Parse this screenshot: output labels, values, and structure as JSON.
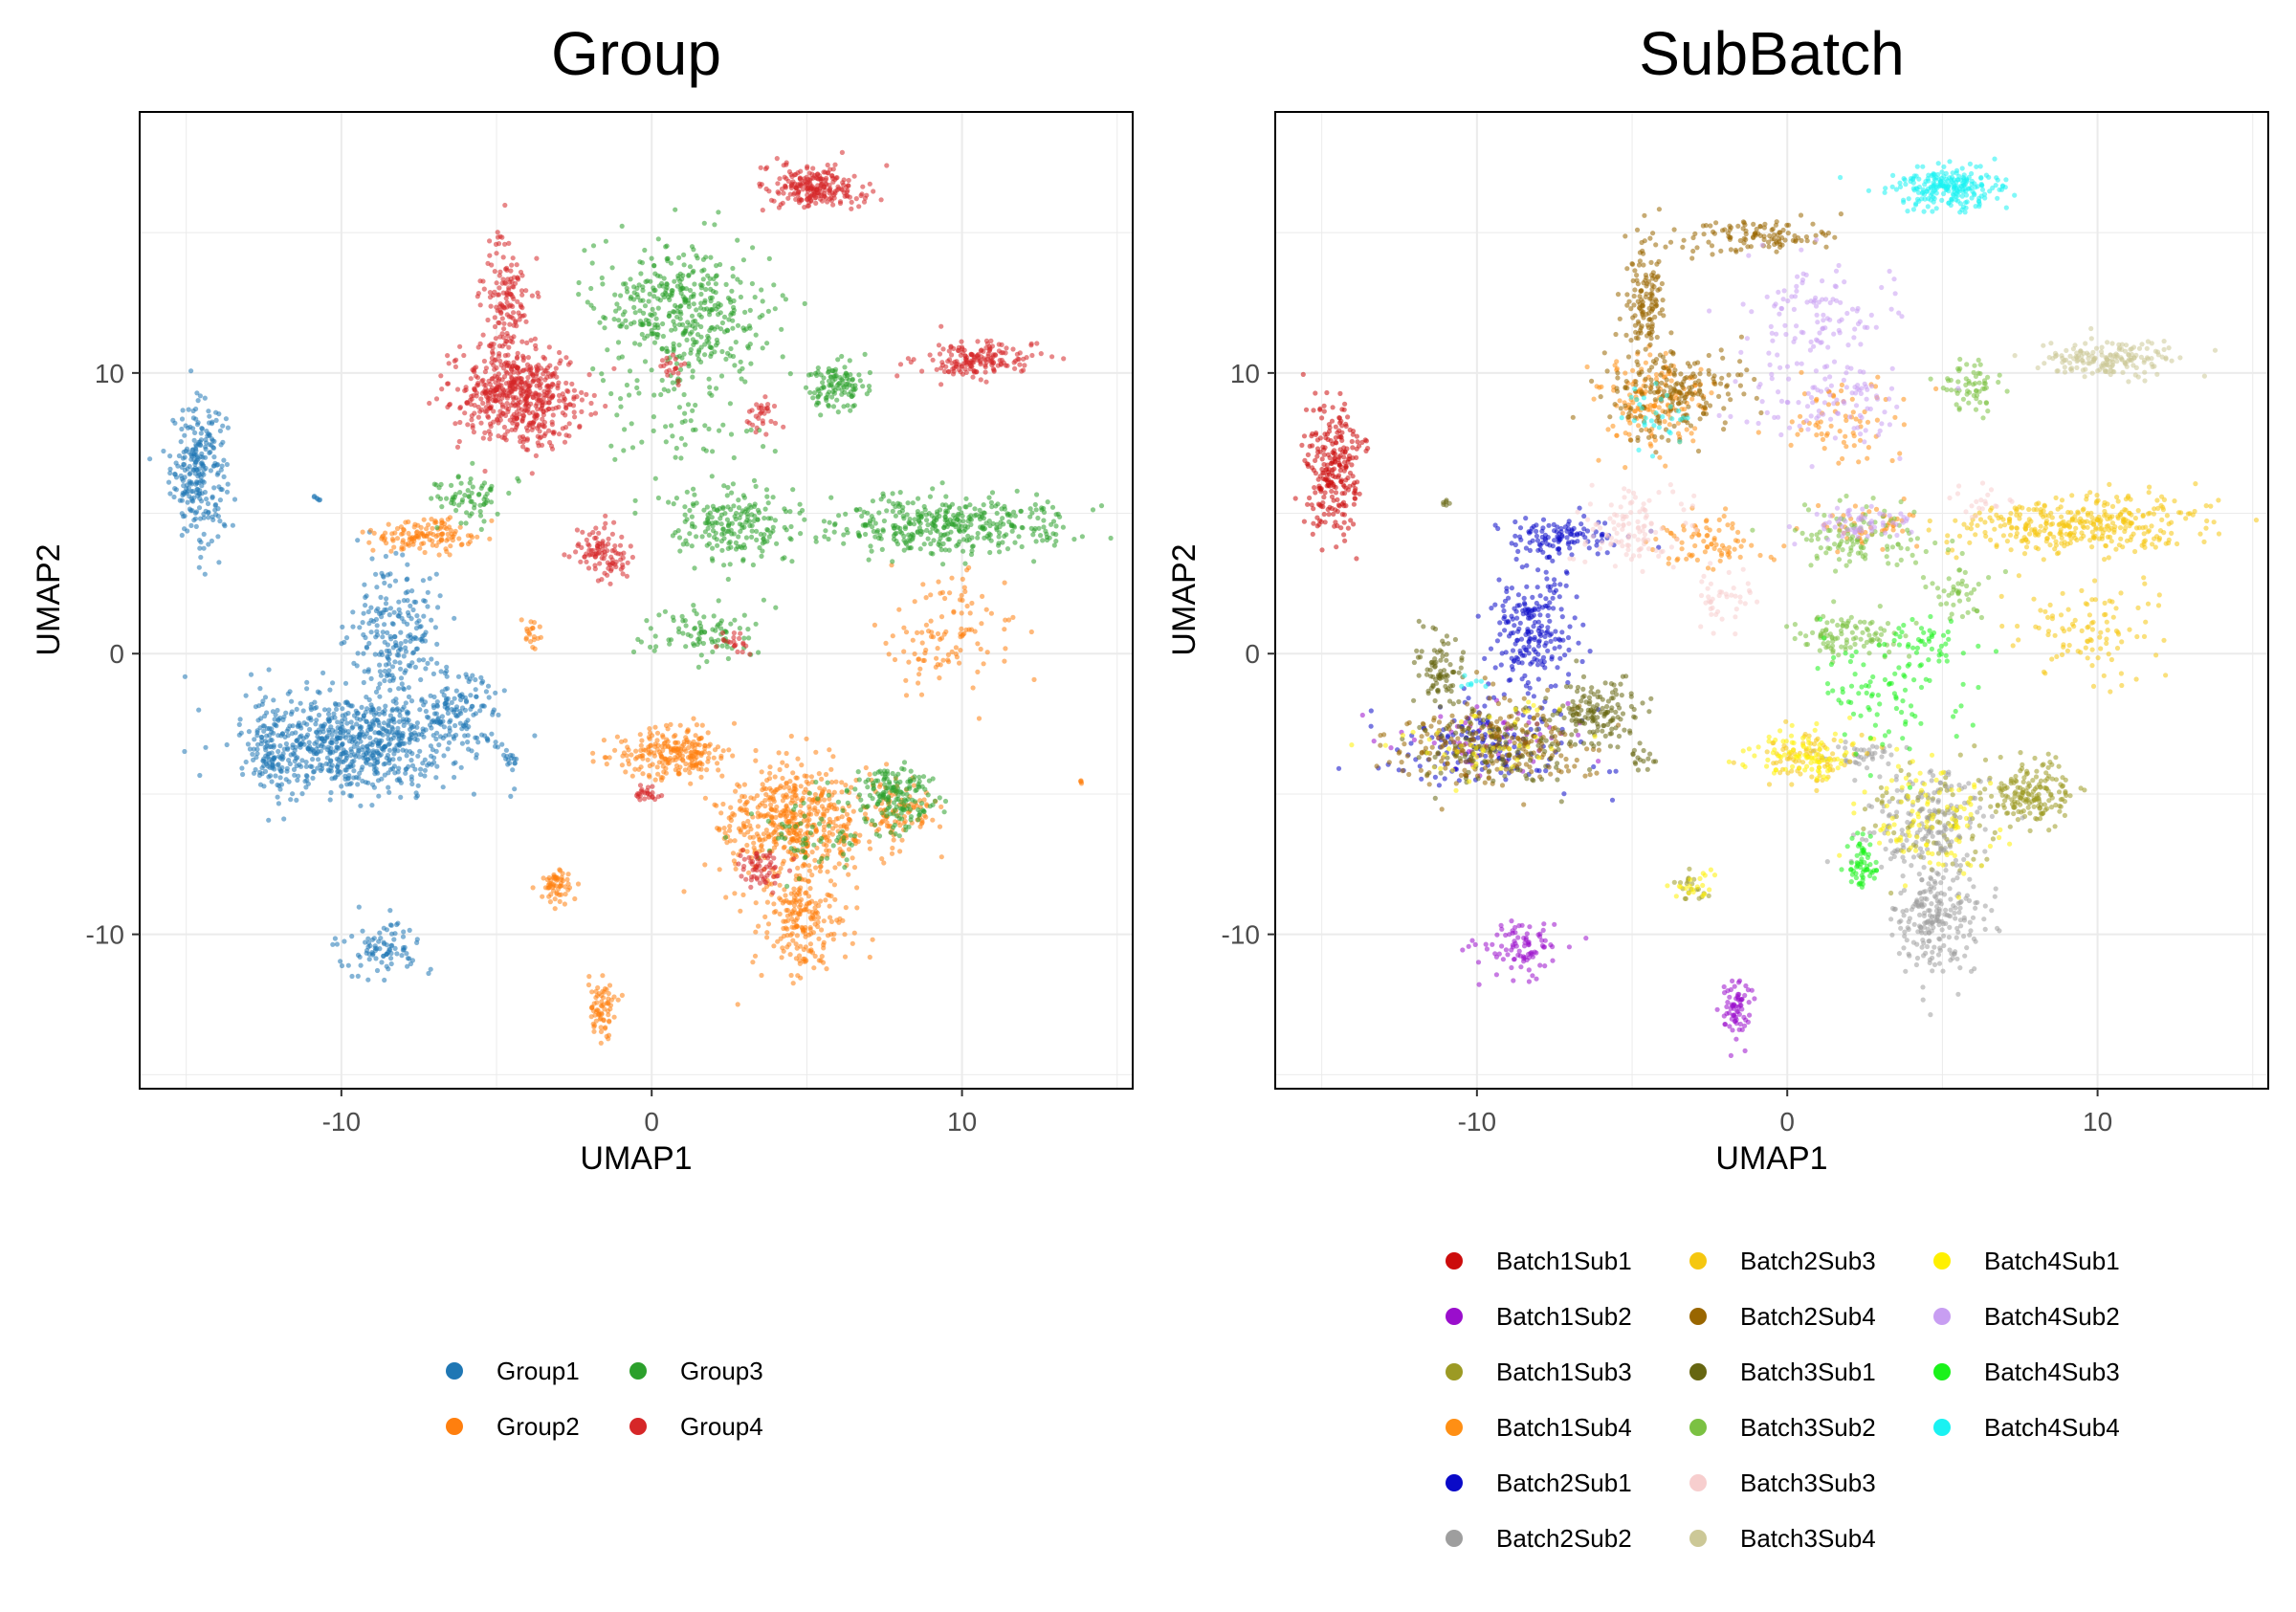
{
  "chart_data": [
    {
      "type": "scatter",
      "title": "Group",
      "xlabel": "UMAP1",
      "ylabel": "UMAP2",
      "xlim": [
        -16.5,
        15.5
      ],
      "ylim": [
        -15.5,
        19.3
      ],
      "xticks": [
        -10,
        0,
        10
      ],
      "yticks": [
        -10,
        0,
        10
      ],
      "xtick_labels": [
        "-10",
        "0",
        "10"
      ],
      "ytick_labels": [
        "-10",
        "0",
        "10"
      ],
      "grid": true,
      "legend_position": "bottom",
      "series": [
        {
          "name": "Group1",
          "color": "#1F77B4",
          "clusters": [
            {
              "cx": -14.6,
              "cy": 6.5,
              "sx": 0.6,
              "sy": 1.6,
              "n": 260
            },
            {
              "cx": -9.6,
              "cy": -3.2,
              "sx": 2.3,
              "sy": 1.2,
              "n": 700
            },
            {
              "cx": -8.2,
              "cy": 0.8,
              "sx": 1.0,
              "sy": 1.8,
              "n": 220
            },
            {
              "cx": -6.2,
              "cy": -2.1,
              "sx": 0.9,
              "sy": 0.8,
              "n": 120
            },
            {
              "cx": -8.7,
              "cy": -10.5,
              "sx": 0.9,
              "sy": 0.6,
              "n": 90
            },
            {
              "cx": -12.2,
              "cy": -3.5,
              "sx": 0.5,
              "sy": 1.0,
              "n": 80
            },
            {
              "cx": -4.6,
              "cy": -3.8,
              "sx": 0.2,
              "sy": 0.2,
              "n": 15
            },
            {
              "cx": -10.8,
              "cy": 5.5,
              "sx": 0.1,
              "sy": 0.1,
              "n": 6
            }
          ]
        },
        {
          "name": "Group2",
          "color": "#FF7F0E",
          "clusters": [
            {
              "cx": 4.6,
              "cy": -6.0,
              "sx": 1.6,
              "sy": 1.4,
              "n": 520
            },
            {
              "cx": 4.9,
              "cy": -9.5,
              "sx": 0.9,
              "sy": 1.3,
              "n": 200
            },
            {
              "cx": 0.7,
              "cy": -3.6,
              "sx": 1.3,
              "sy": 0.6,
              "n": 230
            },
            {
              "cx": -7.4,
              "cy": 4.2,
              "sx": 1.2,
              "sy": 0.4,
              "n": 130
            },
            {
              "cx": -3.1,
              "cy": -8.3,
              "sx": 0.4,
              "sy": 0.4,
              "n": 60
            },
            {
              "cx": -1.6,
              "cy": -12.7,
              "sx": 0.3,
              "sy": 0.8,
              "n": 70
            },
            {
              "cx": 9.6,
              "cy": 0.8,
              "sx": 1.4,
              "sy": 1.2,
              "n": 110
            },
            {
              "cx": 7.9,
              "cy": -5.6,
              "sx": 0.8,
              "sy": 0.7,
              "n": 90
            },
            {
              "cx": -3.9,
              "cy": 0.8,
              "sx": 0.3,
              "sy": 0.3,
              "n": 20
            },
            {
              "cx": 13.8,
              "cy": -4.6,
              "sx": 0.1,
              "sy": 0.1,
              "n": 4
            }
          ]
        },
        {
          "name": "Group3",
          "color": "#2CA02C",
          "clusters": [
            {
              "cx": 1.0,
              "cy": 12.2,
              "sx": 1.9,
              "sy": 1.6,
              "n": 420
            },
            {
              "cx": 6.0,
              "cy": 9.5,
              "sx": 0.6,
              "sy": 0.6,
              "n": 110
            },
            {
              "cx": 9.5,
              "cy": 4.6,
              "sx": 2.6,
              "sy": 0.7,
              "n": 380
            },
            {
              "cx": 2.5,
              "cy": 4.6,
              "sx": 1.4,
              "sy": 0.8,
              "n": 200
            },
            {
              "cx": 7.8,
              "cy": -5.0,
              "sx": 0.9,
              "sy": 0.8,
              "n": 170
            },
            {
              "cx": -5.8,
              "cy": 5.5,
              "sx": 0.8,
              "sy": 0.6,
              "n": 70
            },
            {
              "cx": 1.8,
              "cy": 0.7,
              "sx": 1.2,
              "sy": 0.6,
              "n": 90
            },
            {
              "cx": 5.0,
              "cy": -6.5,
              "sx": 1.2,
              "sy": 1.0,
              "n": 60
            },
            {
              "cx": 0.8,
              "cy": 8.2,
              "sx": 1.8,
              "sy": 1.2,
              "n": 60
            }
          ]
        },
        {
          "name": "Group4",
          "color": "#D62728",
          "clusters": [
            {
              "cx": 5.2,
              "cy": 16.6,
              "sx": 1.1,
              "sy": 0.5,
              "n": 230
            },
            {
              "cx": 10.4,
              "cy": 10.5,
              "sx": 1.3,
              "sy": 0.4,
              "n": 170
            },
            {
              "cx": -4.4,
              "cy": 9.2,
              "sx": 1.3,
              "sy": 1.1,
              "n": 560
            },
            {
              "cx": -4.6,
              "cy": 12.6,
              "sx": 0.5,
              "sy": 1.4,
              "n": 140
            },
            {
              "cx": -1.6,
              "cy": 3.6,
              "sx": 0.6,
              "sy": 0.6,
              "n": 100
            },
            {
              "cx": 3.5,
              "cy": -7.7,
              "sx": 0.5,
              "sy": 0.5,
              "n": 60
            },
            {
              "cx": 3.5,
              "cy": 8.5,
              "sx": 0.4,
              "sy": 0.4,
              "n": 30
            },
            {
              "cx": -0.2,
              "cy": -5.0,
              "sx": 0.3,
              "sy": 0.2,
              "n": 25
            },
            {
              "cx": 0.6,
              "cy": 10.2,
              "sx": 0.3,
              "sy": 0.3,
              "n": 20
            },
            {
              "cx": 2.7,
              "cy": 0.4,
              "sx": 0.4,
              "sy": 0.3,
              "n": 20
            }
          ]
        }
      ]
    },
    {
      "type": "scatter",
      "title": "SubBatch",
      "xlabel": "UMAP1",
      "ylabel": "UMAP2",
      "xlim": [
        -16.5,
        15.5
      ],
      "ylim": [
        -15.5,
        19.3
      ],
      "xticks": [
        -10,
        0,
        10
      ],
      "yticks": [
        -10,
        0,
        10
      ],
      "xtick_labels": [
        "-10",
        "0",
        "10"
      ],
      "ytick_labels": [
        "-10",
        "0",
        "10"
      ],
      "grid": true,
      "legend_position": "bottom",
      "series": [
        {
          "name": "Batch1Sub1",
          "color": "#CC0C0C",
          "clusters": [
            {
              "cx": -14.6,
              "cy": 6.5,
              "sx": 0.6,
              "sy": 1.6,
              "n": 250
            }
          ]
        },
        {
          "name": "Batch1Sub2",
          "color": "#9A0ECC",
          "clusters": [
            {
              "cx": -8.7,
              "cy": -10.5,
              "sx": 0.9,
              "sy": 0.6,
              "n": 90
            },
            {
              "cx": -1.6,
              "cy": -12.7,
              "sx": 0.3,
              "sy": 0.8,
              "n": 70
            },
            {
              "cx": -9.6,
              "cy": -3.2,
              "sx": 2.0,
              "sy": 1.0,
              "n": 60
            }
          ]
        },
        {
          "name": "Batch1Sub3",
          "color": "#9C9A24",
          "clusters": [
            {
              "cx": 7.8,
              "cy": -5.0,
              "sx": 0.9,
              "sy": 0.8,
              "n": 170
            },
            {
              "cx": 4.6,
              "cy": -6.0,
              "sx": 1.5,
              "sy": 1.3,
              "n": 80
            },
            {
              "cx": -3.1,
              "cy": -8.3,
              "sx": 0.4,
              "sy": 0.4,
              "n": 20
            }
          ]
        },
        {
          "name": "Batch1Sub4",
          "color": "#FF8F14",
          "clusters": [
            {
              "cx": -4.4,
              "cy": 9.0,
              "sx": 1.3,
              "sy": 1.1,
              "n": 150
            },
            {
              "cx": -2.6,
              "cy": 4.0,
              "sx": 1.4,
              "sy": 0.6,
              "n": 80
            },
            {
              "cx": 1.8,
              "cy": 8.3,
              "sx": 1.4,
              "sy": 1.1,
              "n": 70
            },
            {
              "cx": 2.5,
              "cy": 4.6,
              "sx": 1.2,
              "sy": 0.5,
              "n": 50
            }
          ]
        },
        {
          "name": "Batch2Sub1",
          "color": "#0A0AC8",
          "clusters": [
            {
              "cx": -8.2,
              "cy": 0.8,
              "sx": 1.0,
              "sy": 1.8,
              "n": 220
            },
            {
              "cx": -7.4,
              "cy": 4.2,
              "sx": 1.2,
              "sy": 0.4,
              "n": 110
            },
            {
              "cx": -9.6,
              "cy": -3.2,
              "sx": 2.0,
              "sy": 1.0,
              "n": 150
            }
          ]
        },
        {
          "name": "Batch2Sub2",
          "color": "#9E9E9E",
          "clusters": [
            {
              "cx": 4.9,
              "cy": -9.5,
              "sx": 0.9,
              "sy": 1.3,
              "n": 220
            },
            {
              "cx": 4.6,
              "cy": -6.0,
              "sx": 1.5,
              "sy": 1.3,
              "n": 180
            },
            {
              "cx": 2.4,
              "cy": -3.6,
              "sx": 0.8,
              "sy": 0.4,
              "n": 40
            }
          ]
        },
        {
          "name": "Batch2Sub3",
          "color": "#F5C710",
          "clusters": [
            {
              "cx": 9.5,
              "cy": 4.6,
              "sx": 2.6,
              "sy": 0.7,
              "n": 360
            },
            {
              "cx": 9.6,
              "cy": 0.8,
              "sx": 1.4,
              "sy": 1.2,
              "n": 100
            },
            {
              "cx": 0.7,
              "cy": -3.6,
              "sx": 1.2,
              "sy": 0.6,
              "n": 80
            }
          ]
        },
        {
          "name": "Batch2Sub4",
          "color": "#996600",
          "clusters": [
            {
              "cx": -4.6,
              "cy": 12.6,
              "sx": 0.5,
              "sy": 1.4,
              "n": 140
            },
            {
              "cx": -1.0,
              "cy": 14.9,
              "sx": 1.5,
              "sy": 0.4,
              "n": 110
            },
            {
              "cx": -3.6,
              "cy": 9.2,
              "sx": 1.4,
              "sy": 1.0,
              "n": 200
            },
            {
              "cx": -9.6,
              "cy": -3.2,
              "sx": 2.0,
              "sy": 1.0,
              "n": 250
            }
          ]
        },
        {
          "name": "Batch3Sub1",
          "color": "#666611",
          "clusters": [
            {
              "cx": -6.2,
              "cy": -2.1,
              "sx": 0.9,
              "sy": 0.8,
              "n": 140
            },
            {
              "cx": -11.2,
              "cy": -0.5,
              "sx": 0.5,
              "sy": 0.8,
              "n": 80
            },
            {
              "cx": -9.6,
              "cy": -3.2,
              "sx": 2.0,
              "sy": 1.0,
              "n": 120
            },
            {
              "cx": -4.6,
              "cy": -3.8,
              "sx": 0.3,
              "sy": 0.3,
              "n": 15
            },
            {
              "cx": -11.0,
              "cy": 5.4,
              "sx": 0.1,
              "sy": 0.1,
              "n": 6
            }
          ]
        },
        {
          "name": "Batch3Sub2",
          "color": "#7BC142",
          "clusters": [
            {
              "cx": 2.5,
              "cy": 4.0,
              "sx": 1.5,
              "sy": 0.8,
              "n": 110
            },
            {
              "cx": 1.8,
              "cy": 0.7,
              "sx": 1.2,
              "sy": 0.6,
              "n": 100
            },
            {
              "cx": 6.0,
              "cy": 9.5,
              "sx": 0.6,
              "sy": 0.6,
              "n": 60
            },
            {
              "cx": 5.6,
              "cy": 2.2,
              "sx": 0.8,
              "sy": 0.6,
              "n": 40
            }
          ]
        },
        {
          "name": "Batch3Sub3",
          "color": "#F7CECE",
          "clusters": [
            {
              "cx": -5.0,
              "cy": 4.6,
              "sx": 1.2,
              "sy": 1.0,
              "n": 110
            },
            {
              "cx": -2.0,
              "cy": 2.0,
              "sx": 0.8,
              "sy": 0.8,
              "n": 40
            },
            {
              "cx": 6.2,
              "cy": 5.5,
              "sx": 0.6,
              "sy": 0.6,
              "n": 20
            }
          ]
        },
        {
          "name": "Batch3Sub4",
          "color": "#CCC897",
          "clusters": [
            {
              "cx": 10.4,
              "cy": 10.5,
              "sx": 1.3,
              "sy": 0.4,
              "n": 170
            }
          ]
        },
        {
          "name": "Batch4Sub1",
          "color": "#FFF000",
          "clusters": [
            {
              "cx": 0.7,
              "cy": -3.6,
              "sx": 1.2,
              "sy": 0.6,
              "n": 90
            },
            {
              "cx": 4.6,
              "cy": -6.0,
              "sx": 1.5,
              "sy": 1.3,
              "n": 100
            },
            {
              "cx": -3.1,
              "cy": -8.3,
              "sx": 0.4,
              "sy": 0.4,
              "n": 20
            },
            {
              "cx": -9.6,
              "cy": -3.2,
              "sx": 2.0,
              "sy": 1.0,
              "n": 50
            }
          ]
        },
        {
          "name": "Batch4Sub2",
          "color": "#C89EF2",
          "clusters": [
            {
              "cx": 1.0,
              "cy": 12.0,
              "sx": 1.7,
              "sy": 1.5,
              "n": 120
            },
            {
              "cx": 1.5,
              "cy": 8.8,
              "sx": 1.8,
              "sy": 1.0,
              "n": 90
            },
            {
              "cx": 2.5,
              "cy": 4.6,
              "sx": 1.2,
              "sy": 0.5,
              "n": 60
            }
          ]
        },
        {
          "name": "Batch4Sub3",
          "color": "#1AF21A",
          "clusters": [
            {
              "cx": 3.2,
              "cy": -1.6,
              "sx": 1.5,
              "sy": 1.5,
              "n": 90
            },
            {
              "cx": 2.4,
              "cy": -7.5,
              "sx": 0.4,
              "sy": 0.6,
              "n": 60
            },
            {
              "cx": 4.6,
              "cy": 0.4,
              "sx": 0.8,
              "sy": 0.5,
              "n": 40
            }
          ]
        },
        {
          "name": "Batch4Sub4",
          "color": "#1AF2F2",
          "clusters": [
            {
              "cx": 5.2,
              "cy": 16.6,
              "sx": 1.1,
              "sy": 0.5,
              "n": 230
            },
            {
              "cx": -4.0,
              "cy": 8.6,
              "sx": 1.0,
              "sy": 0.8,
              "n": 30
            },
            {
              "cx": -10.2,
              "cy": -1.0,
              "sx": 0.3,
              "sy": 0.2,
              "n": 8
            }
          ]
        }
      ]
    }
  ]
}
